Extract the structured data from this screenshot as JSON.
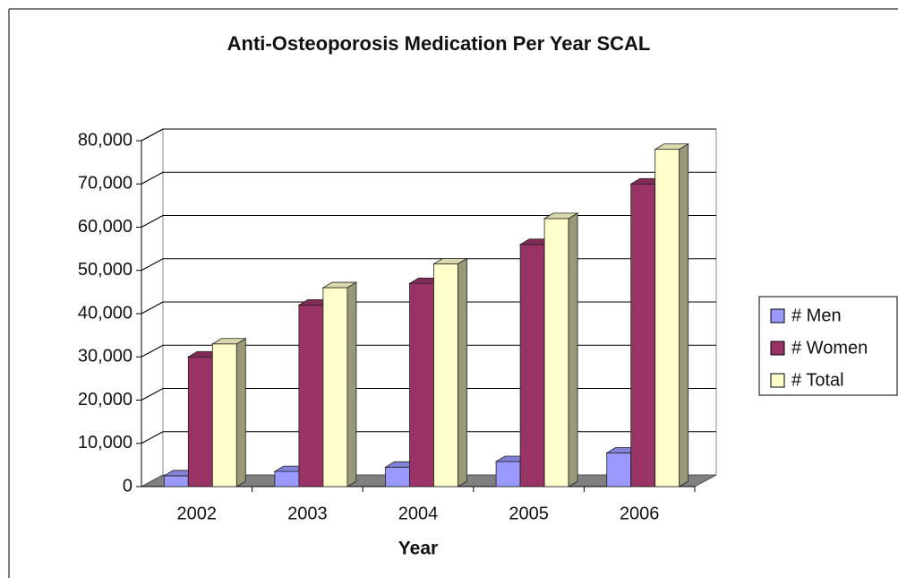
{
  "chart_data": {
    "type": "bar3d",
    "title": "Anti-Osteoporosis Medication Per Year SCAL",
    "xlabel": "Year",
    "categories": [
      "2002",
      "2003",
      "2004",
      "2005",
      "2006"
    ],
    "series": [
      {
        "name": "# Men",
        "color": "#9999ff",
        "values": [
          2500,
          3500,
          4500,
          5800,
          7800
        ]
      },
      {
        "name": "# Women",
        "color": "#993366",
        "values": [
          30000,
          42000,
          47000,
          56000,
          70000
        ]
      },
      {
        "name": "# Total",
        "color": "#ffffcc",
        "values": [
          33000,
          46000,
          51500,
          62000,
          78000
        ]
      }
    ],
    "ylim": [
      0,
      80000
    ],
    "yticks": [
      0,
      {
        "value": 10000,
        "label": "10,000"
      },
      {
        "value": 20000,
        "label": "20,000"
      },
      {
        "value": 30000,
        "label": "30,000"
      },
      {
        "value": 40000,
        "label": "40,000"
      },
      {
        "value": 50000,
        "label": "50,000"
      },
      {
        "value": 60000,
        "label": "60,000"
      },
      {
        "value": 70000,
        "label": "70,000"
      },
      {
        "value": 80000,
        "label": "80,000"
      }
    ],
    "grid": true,
    "legend": "right"
  }
}
